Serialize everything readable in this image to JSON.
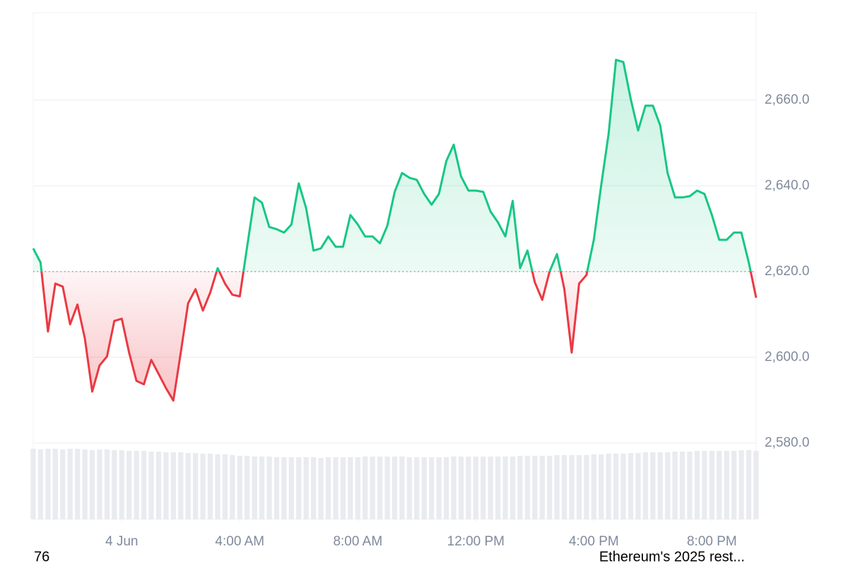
{
  "chart_data": {
    "type": "price-line",
    "x": [
      -3,
      -2.75,
      -2.5,
      -2.25,
      -2,
      -1.75,
      -1.5,
      -1.25,
      -1,
      -0.75,
      -0.5,
      -0.25,
      0,
      0.25,
      0.5,
      0.75,
      1,
      1.25,
      1.5,
      1.75,
      2,
      2.25,
      2.5,
      2.75,
      3,
      3.25,
      3.5,
      3.75,
      4,
      4.25,
      4.5,
      4.75,
      5,
      5.25,
      5.5,
      5.75,
      6,
      6.25,
      6.5,
      6.75,
      7,
      7.25,
      7.5,
      7.75,
      8,
      8.25,
      8.5,
      8.75,
      9,
      9.25,
      9.5,
      9.75,
      10,
      10.25,
      10.5,
      10.75,
      11,
      11.25,
      11.5,
      11.75,
      12,
      12.25,
      12.5,
      12.75,
      13,
      13.25,
      13.5,
      13.75,
      14,
      14.25,
      14.5,
      14.75,
      15,
      15.25,
      15.5,
      15.75,
      16,
      16.25,
      16.5,
      16.75,
      17,
      17.25,
      17.5,
      17.75,
      18,
      18.25,
      18.5,
      18.75,
      19,
      19.25,
      19.5,
      19.75,
      20,
      20.25,
      20.5,
      20.75,
      21,
      21.25,
      21.5
    ],
    "values": [
      2625.4,
      2622.1,
      2606.0,
      2617.2,
      2616.5,
      2607.7,
      2612.3,
      2604.4,
      2592.0,
      2598.1,
      2600.2,
      2608.5,
      2609.0,
      2601.1,
      2594.5,
      2593.7,
      2599.4,
      2596.1,
      2592.8,
      2589.9,
      2601.1,
      2612.6,
      2615.9,
      2610.9,
      2615.1,
      2620.8,
      2617.2,
      2614.6,
      2614.2,
      2625.8,
      2637.3,
      2636.1,
      2630.4,
      2629.9,
      2629.1,
      2631.0,
      2640.6,
      2634.8,
      2624.9,
      2625.4,
      2628.2,
      2625.8,
      2625.8,
      2633.2,
      2631.0,
      2628.2,
      2628.2,
      2626.6,
      2630.7,
      2638.6,
      2643.0,
      2641.9,
      2641.4,
      2638.1,
      2635.6,
      2638.1,
      2645.8,
      2649.6,
      2642.2,
      2638.9,
      2638.9,
      2638.6,
      2634.0,
      2631.5,
      2628.2,
      2636.5,
      2620.8,
      2624.9,
      2617.5,
      2613.4,
      2620.0,
      2624.1,
      2615.9,
      2601.1,
      2617.2,
      2619.2,
      2627.4,
      2640.2,
      2652.1,
      2669.4,
      2668.9,
      2660.3,
      2652.9,
      2658.7,
      2658.7,
      2654.1,
      2643.0,
      2637.3,
      2637.3,
      2637.6,
      2638.9,
      2638.1,
      2633.2,
      2627.4,
      2627.4,
      2629.1,
      2629.1,
      2622.1,
      2613.9
    ],
    "volume": [
      100,
      99,
      100,
      100,
      99,
      100,
      100,
      99,
      98,
      99,
      99,
      98,
      98,
      97,
      97,
      97,
      96,
      96,
      95,
      95,
      95,
      94,
      94,
      93,
      93,
      92,
      92,
      91,
      90,
      90,
      89,
      89,
      89,
      88,
      88,
      88,
      88,
      88,
      88,
      87,
      88,
      88,
      88,
      88,
      88,
      89,
      89,
      89,
      89,
      89,
      89,
      88,
      88,
      88,
      88,
      88,
      88,
      89,
      89,
      89,
      89,
      89,
      89,
      89,
      89,
      89,
      90,
      90,
      90,
      90,
      90,
      91,
      91,
      91,
      91,
      91,
      92,
      92,
      93,
      93,
      93,
      94,
      94,
      95,
      95,
      95,
      95,
      96,
      96,
      96,
      97,
      97,
      97,
      97,
      97,
      97,
      98,
      98,
      97
    ],
    "baseline": 2620,
    "up_color": "#16c784",
    "down_color": "#ea3943",
    "xlim": [
      -3,
      21.5
    ],
    "xticks": [
      {
        "value": 0,
        "label": "4 Jun"
      },
      {
        "value": 4,
        "label": "4:00 AM"
      },
      {
        "value": 8,
        "label": "8:00 AM"
      },
      {
        "value": 12,
        "label": "12:00 PM"
      },
      {
        "value": 16,
        "label": "4:00 PM"
      },
      {
        "value": 20,
        "label": "8:00 PM"
      }
    ],
    "ylim": [
      2562.2,
      2680.4
    ],
    "yticks": [
      {
        "value": 2580,
        "label": "2,580.0"
      },
      {
        "value": 2600,
        "label": "2,600.0"
      },
      {
        "value": 2620,
        "label": "2,620.0"
      },
      {
        "value": 2640,
        "label": "2,640.0"
      },
      {
        "value": 2660,
        "label": "2,660.0"
      }
    ],
    "grid": true
  },
  "footer": {
    "left": "76",
    "right": "Ethereum's 2025 rest..."
  }
}
